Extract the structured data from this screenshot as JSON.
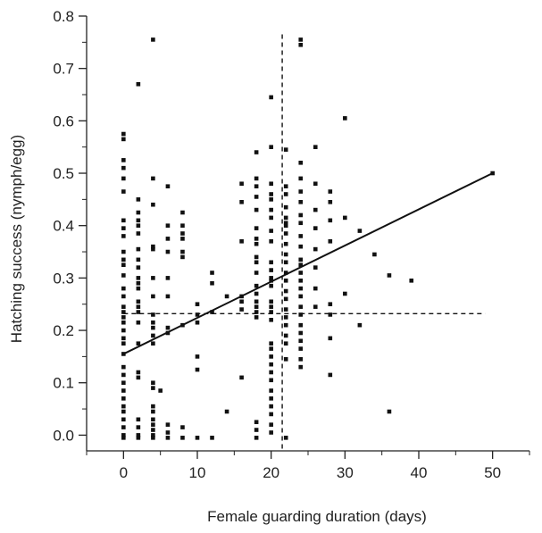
{
  "chart_data": {
    "type": "scatter",
    "title": "",
    "xlabel": "Female guarding duration (days)",
    "ylabel": "Hatching success (nymph/egg)",
    "xlim": [
      -5,
      55
    ],
    "ylim": [
      -0.03,
      0.8
    ],
    "x_ticks": [
      0,
      10,
      20,
      30,
      40,
      50
    ],
    "y_ticks": [
      0.0,
      0.1,
      0.2,
      0.3,
      0.4,
      0.5,
      0.6,
      0.7,
      0.8
    ],
    "x_tick_labels": [
      "0",
      "10",
      "20",
      "30",
      "40",
      "50"
    ],
    "y_tick_labels": [
      "0.0",
      "0.1",
      "0.2",
      "0.3",
      "0.4",
      "0.5",
      "0.6",
      "0.7",
      "0.8"
    ],
    "grid": false,
    "legend": "none",
    "points": [
      [
        0,
        0.575
      ],
      [
        0,
        0.565
      ],
      [
        0,
        0.525
      ],
      [
        0,
        0.51
      ],
      [
        0,
        0.49
      ],
      [
        0,
        0.465
      ],
      [
        0,
        0.41
      ],
      [
        0,
        0.395
      ],
      [
        0,
        0.38
      ],
      [
        0,
        0.35
      ],
      [
        0,
        0.335
      ],
      [
        0,
        0.325
      ],
      [
        0,
        0.305
      ],
      [
        0,
        0.28
      ],
      [
        0,
        0.265
      ],
      [
        0,
        0.245
      ],
      [
        0,
        0.235
      ],
      [
        0,
        0.225
      ],
      [
        0,
        0.215
      ],
      [
        0,
        0.2
      ],
      [
        0,
        0.185
      ],
      [
        0,
        0.175
      ],
      [
        0,
        0.155
      ],
      [
        0,
        0.13
      ],
      [
        0,
        0.115
      ],
      [
        0,
        0.1
      ],
      [
        0,
        0.085
      ],
      [
        0,
        0.07
      ],
      [
        0,
        0.055
      ],
      [
        0,
        0.045
      ],
      [
        0,
        0.03
      ],
      [
        0,
        0.015
      ],
      [
        0,
        0.0
      ],
      [
        0,
        -0.005
      ],
      [
        2,
        0.67
      ],
      [
        2,
        0.45
      ],
      [
        2,
        0.425
      ],
      [
        2,
        0.41
      ],
      [
        2,
        0.4
      ],
      [
        2,
        0.385
      ],
      [
        2,
        0.355
      ],
      [
        2,
        0.335
      ],
      [
        2,
        0.32
      ],
      [
        2,
        0.3
      ],
      [
        2,
        0.29
      ],
      [
        2,
        0.28
      ],
      [
        2,
        0.255
      ],
      [
        2,
        0.245
      ],
      [
        2,
        0.235
      ],
      [
        2,
        0.215
      ],
      [
        2,
        0.175
      ],
      [
        2,
        0.12
      ],
      [
        2,
        0.11
      ],
      [
        2,
        0.03
      ],
      [
        2,
        0.015
      ],
      [
        2,
        0.0
      ],
      [
        2,
        -0.005
      ],
      [
        4,
        0.755
      ],
      [
        4,
        0.49
      ],
      [
        4,
        0.44
      ],
      [
        4,
        0.36
      ],
      [
        4,
        0.355
      ],
      [
        4,
        0.3
      ],
      [
        4,
        0.265
      ],
      [
        4,
        0.23
      ],
      [
        4,
        0.215
      ],
      [
        4,
        0.205
      ],
      [
        4,
        0.19
      ],
      [
        4,
        0.175
      ],
      [
        4,
        0.1
      ],
      [
        4,
        0.09
      ],
      [
        4,
        0.055
      ],
      [
        4,
        0.045
      ],
      [
        4,
        0.03
      ],
      [
        4,
        0.02
      ],
      [
        4,
        0.01
      ],
      [
        4,
        0.0
      ],
      [
        4,
        -0.005
      ],
      [
        5,
        0.085
      ],
      [
        6,
        0.475
      ],
      [
        6,
        0.4
      ],
      [
        6,
        0.375
      ],
      [
        6,
        0.35
      ],
      [
        6,
        0.3
      ],
      [
        6,
        0.265
      ],
      [
        6,
        0.205
      ],
      [
        6,
        0.195
      ],
      [
        6,
        0.02
      ],
      [
        6,
        0.005
      ],
      [
        6,
        -0.005
      ],
      [
        8,
        0.425
      ],
      [
        8,
        0.4
      ],
      [
        8,
        0.385
      ],
      [
        8,
        0.375
      ],
      [
        8,
        0.35
      ],
      [
        8,
        0.34
      ],
      [
        8,
        0.21
      ],
      [
        8,
        0.015
      ],
      [
        8,
        -0.005
      ],
      [
        10,
        0.25
      ],
      [
        10,
        0.23
      ],
      [
        10,
        0.215
      ],
      [
        10,
        0.15
      ],
      [
        10,
        0.125
      ],
      [
        10,
        -0.005
      ],
      [
        12,
        0.31
      ],
      [
        12,
        0.29
      ],
      [
        12,
        0.235
      ],
      [
        12,
        -0.005
      ],
      [
        14,
        0.265
      ],
      [
        14,
        0.045
      ],
      [
        16,
        0.48
      ],
      [
        16,
        0.445
      ],
      [
        16,
        0.37
      ],
      [
        16,
        0.265
      ],
      [
        16,
        0.255
      ],
      [
        16,
        0.24
      ],
      [
        16,
        0.11
      ],
      [
        18,
        0.54
      ],
      [
        18,
        0.49
      ],
      [
        18,
        0.475
      ],
      [
        18,
        0.455
      ],
      [
        18,
        0.43
      ],
      [
        18,
        0.395
      ],
      [
        18,
        0.375
      ],
      [
        18,
        0.365
      ],
      [
        18,
        0.34
      ],
      [
        18,
        0.33
      ],
      [
        18,
        0.31
      ],
      [
        18,
        0.285
      ],
      [
        18,
        0.27
      ],
      [
        18,
        0.255
      ],
      [
        18,
        0.245
      ],
      [
        18,
        0.235
      ],
      [
        18,
        0.225
      ],
      [
        18,
        0.025
      ],
      [
        18,
        0.01
      ],
      [
        18,
        -0.005
      ],
      [
        20,
        0.645
      ],
      [
        20,
        0.55
      ],
      [
        20,
        0.48
      ],
      [
        20,
        0.46
      ],
      [
        20,
        0.45
      ],
      [
        20,
        0.43
      ],
      [
        20,
        0.415
      ],
      [
        20,
        0.39
      ],
      [
        20,
        0.37
      ],
      [
        20,
        0.33
      ],
      [
        20,
        0.315
      ],
      [
        20,
        0.3
      ],
      [
        20,
        0.295
      ],
      [
        20,
        0.285
      ],
      [
        20,
        0.255
      ],
      [
        20,
        0.245
      ],
      [
        20,
        0.235
      ],
      [
        20,
        0.22
      ],
      [
        20,
        0.175
      ],
      [
        20,
        0.165
      ],
      [
        20,
        0.15
      ],
      [
        20,
        0.135
      ],
      [
        20,
        0.12
      ],
      [
        20,
        0.105
      ],
      [
        20,
        0.085
      ],
      [
        20,
        0.07
      ],
      [
        20,
        0.055
      ],
      [
        20,
        0.04
      ],
      [
        20,
        0.02
      ],
      [
        20,
        0.005
      ],
      [
        22,
        0.545
      ],
      [
        22,
        0.475
      ],
      [
        22,
        0.46
      ],
      [
        22,
        0.435
      ],
      [
        22,
        0.415
      ],
      [
        22,
        0.405
      ],
      [
        22,
        0.4
      ],
      [
        22,
        0.385
      ],
      [
        22,
        0.365
      ],
      [
        22,
        0.345
      ],
      [
        22,
        0.33
      ],
      [
        22,
        0.31
      ],
      [
        22,
        0.295
      ],
      [
        22,
        0.275
      ],
      [
        22,
        0.26
      ],
      [
        22,
        0.24
      ],
      [
        22,
        0.225
      ],
      [
        22,
        0.21
      ],
      [
        22,
        0.19
      ],
      [
        22,
        0.175
      ],
      [
        22,
        0.145
      ],
      [
        22,
        -0.005
      ],
      [
        24,
        0.755
      ],
      [
        24,
        0.745
      ],
      [
        24,
        0.52
      ],
      [
        24,
        0.49
      ],
      [
        24,
        0.465
      ],
      [
        24,
        0.445
      ],
      [
        24,
        0.42
      ],
      [
        24,
        0.405
      ],
      [
        24,
        0.38
      ],
      [
        24,
        0.36
      ],
      [
        24,
        0.335
      ],
      [
        24,
        0.325
      ],
      [
        24,
        0.31
      ],
      [
        24,
        0.295
      ],
      [
        24,
        0.28
      ],
      [
        24,
        0.265
      ],
      [
        24,
        0.245
      ],
      [
        24,
        0.23
      ],
      [
        24,
        0.21
      ],
      [
        24,
        0.195
      ],
      [
        24,
        0.18
      ],
      [
        24,
        0.165
      ],
      [
        24,
        0.145
      ],
      [
        24,
        0.13
      ],
      [
        26,
        0.55
      ],
      [
        26,
        0.48
      ],
      [
        26,
        0.43
      ],
      [
        26,
        0.395
      ],
      [
        26,
        0.355
      ],
      [
        26,
        0.32
      ],
      [
        26,
        0.28
      ],
      [
        26,
        0.245
      ],
      [
        28,
        0.465
      ],
      [
        28,
        0.445
      ],
      [
        28,
        0.41
      ],
      [
        28,
        0.37
      ],
      [
        28,
        0.25
      ],
      [
        28,
        0.23
      ],
      [
        28,
        0.185
      ],
      [
        28,
        0.115
      ],
      [
        30,
        0.605
      ],
      [
        30,
        0.415
      ],
      [
        30,
        0.27
      ],
      [
        32,
        0.39
      ],
      [
        32,
        0.21
      ],
      [
        34,
        0.345
      ],
      [
        36,
        0.305
      ],
      [
        36,
        0.045
      ],
      [
        39,
        0.295
      ],
      [
        50,
        0.5
      ]
    ],
    "fit_line": {
      "x": [
        0,
        50
      ],
      "y": [
        0.155,
        0.5
      ]
    },
    "reference_lines": {
      "vertical_x": 21.5,
      "horizontal_y": 0.232
    }
  }
}
